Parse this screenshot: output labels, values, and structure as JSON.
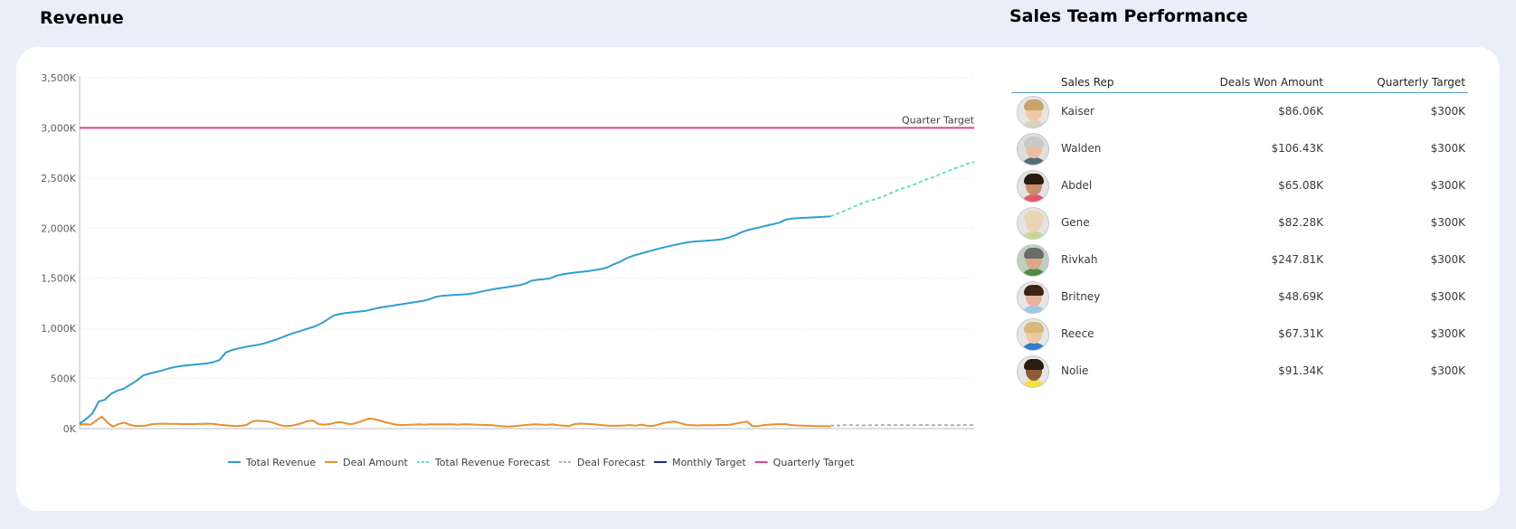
{
  "revenue_panel": {
    "title": "Revenue"
  },
  "sales_panel": {
    "title": "Sales Team Performance"
  },
  "chart_data": {
    "type": "line",
    "y_axis": {
      "min": 0,
      "max": 3500000,
      "ticks": [
        "0K",
        "500K",
        "1,000K",
        "1,500K",
        "2,000K",
        "2,500K",
        "3,000K",
        "3,500K"
      ],
      "gridlines": true
    },
    "x_axis": {
      "labels": []
    },
    "annotations": [
      {
        "text": "Quarter Target",
        "y": 3000000
      }
    ],
    "legend_position": "bottom",
    "series": [
      {
        "name": "Total Revenue",
        "color": "#2e9fd0",
        "style": "solid",
        "x_start": 0,
        "values": [
          50000,
          95000,
          150000,
          270000,
          290000,
          350000,
          380000,
          400000,
          440000,
          480000,
          530000,
          550000,
          565000,
          580000,
          600000,
          615000,
          625000,
          632000,
          638000,
          644000,
          650000,
          662000,
          685000,
          760000,
          785000,
          800000,
          815000,
          825000,
          835000,
          850000,
          870000,
          890000,
          915000,
          940000,
          960000,
          980000,
          1000000,
          1020000,
          1050000,
          1090000,
          1130000,
          1145000,
          1155000,
          1162000,
          1168000,
          1175000,
          1190000,
          1205000,
          1215000,
          1225000,
          1235000,
          1245000,
          1255000,
          1265000,
          1275000,
          1290000,
          1315000,
          1325000,
          1330000,
          1334000,
          1338000,
          1342000,
          1350000,
          1365000,
          1378000,
          1390000,
          1400000,
          1410000,
          1420000,
          1430000,
          1445000,
          1475000,
          1485000,
          1490000,
          1500000,
          1525000,
          1540000,
          1550000,
          1558000,
          1565000,
          1572000,
          1582000,
          1592000,
          1610000,
          1640000,
          1665000,
          1700000,
          1725000,
          1742000,
          1760000,
          1778000,
          1795000,
          1810000,
          1825000,
          1838000,
          1852000,
          1862000,
          1868000,
          1872000,
          1876000,
          1882000,
          1890000,
          1905000,
          1928000,
          1958000,
          1980000,
          1995000,
          2010000,
          2025000,
          2040000,
          2055000,
          2085000,
          2095000,
          2099000,
          2103000,
          2106000,
          2110000,
          2113000,
          2117000
        ]
      },
      {
        "name": "Deal Amount",
        "color": "#e8902e",
        "style": "solid",
        "x_start": 0,
        "values": [
          40000,
          45000,
          40000,
          80000,
          120000,
          60000,
          20000,
          45000,
          60000,
          40000,
          25000,
          28000,
          30000,
          45000,
          48000,
          50000,
          48000,
          47000,
          46000,
          45000,
          45000,
          46000,
          48000,
          50000,
          47000,
          40000,
          35000,
          30000,
          25000,
          28000,
          35000,
          70000,
          80000,
          75000,
          70000,
          55000,
          35000,
          25000,
          28000,
          40000,
          55000,
          75000,
          80000,
          45000,
          40000,
          45000,
          60000,
          65000,
          50000,
          45000,
          60000,
          80000,
          100000,
          95000,
          80000,
          65000,
          50000,
          40000,
          35000,
          38000,
          40000,
          42000,
          40000,
          42000,
          42000,
          42000,
          42000,
          42000,
          40000,
          42000,
          42000,
          40000,
          38000,
          36000,
          35000,
          30000,
          25000,
          20000,
          25000,
          30000,
          35000,
          40000,
          42000,
          40000,
          38000,
          42000,
          35000,
          30000,
          25000,
          45000,
          50000,
          48000,
          45000,
          40000,
          35000,
          30000,
          28000,
          30000,
          32000,
          35000,
          30000,
          40000,
          30000,
          25000,
          40000,
          55000,
          65000,
          70000,
          55000,
          40000,
          35000,
          32000,
          33000,
          35000,
          34000,
          36000,
          36000,
          40000,
          50000,
          60000,
          70000,
          25000,
          25000,
          35000,
          40000,
          42000,
          44000,
          45000,
          35000,
          32000,
          30000,
          28000,
          26000,
          25000,
          24000,
          23000
        ]
      },
      {
        "name": "Total Revenue Forecast",
        "color": "#5fe3c8",
        "style": "dashed",
        "x_start": 120,
        "values": [
          2117000,
          2140000,
          2165000,
          2192000,
          2220000,
          2245000,
          2268000,
          2285000,
          2305000,
          2330000,
          2360000,
          2385000,
          2405000,
          2425000,
          2450000,
          2478000,
          2500000,
          2522000,
          2548000,
          2575000,
          2598000,
          2620000,
          2645000,
          2660000
        ]
      },
      {
        "name": "Deal Forecast",
        "color": "#b0b0b0",
        "style": "dashed",
        "x_start": 120,
        "values": [
          30000,
          31000,
          33000,
          35000,
          34000,
          32000,
          35000,
          33000,
          34000,
          36000,
          33000,
          35000,
          34000,
          33000,
          35000,
          36000,
          34000,
          33000,
          35000,
          34000,
          33000,
          35000,
          34000,
          35000
        ]
      },
      {
        "name": "Monthly Target",
        "color": "#1f2a7a",
        "style": "solid",
        "x_start": 0,
        "values": []
      },
      {
        "name": "Quarterly Target",
        "color": "#e0429b",
        "style": "solid",
        "x_start": 0,
        "values": [
          3000000,
          3000000
        ]
      }
    ],
    "x_total": 143
  },
  "table": {
    "headers": {
      "rep": "Sales Rep",
      "won": "Deals Won Amount",
      "target": "Quarterly Target"
    },
    "rows": [
      {
        "name": "Kaiser",
        "won": "$86.06K",
        "target": "$300K",
        "avatar": {
          "hair": "#c9a46b",
          "skin": "#f1c9a7",
          "shirt": "#d9d2c3",
          "bg": "#e6e6e6"
        }
      },
      {
        "name": "Walden",
        "won": "$106.43K",
        "target": "$300K",
        "avatar": {
          "hair": "#c9c9c9",
          "skin": "#e8bfa0",
          "shirt": "#566b78",
          "bg": "#dedede"
        }
      },
      {
        "name": "Abdel",
        "won": "$65.08K",
        "target": "$300K",
        "avatar": {
          "hair": "#2b1a10",
          "skin": "#c98f6b",
          "shirt": "#e5586b",
          "bg": "#e2e2e2"
        }
      },
      {
        "name": "Gene",
        "won": "$82.28K",
        "target": "$300K",
        "avatar": {
          "hair": "#e7d7b2",
          "skin": "#f1d0b5",
          "shirt": "#c4d89a",
          "bg": "#e4e4e4"
        }
      },
      {
        "name": "Rivkah",
        "won": "$247.81K",
        "target": "$300K",
        "avatar": {
          "hair": "#6b6b6b",
          "skin": "#d9a888",
          "shirt": "#4d8a46",
          "bg": "#bfcfbd"
        }
      },
      {
        "name": "Britney",
        "won": "$48.69K",
        "target": "$300K",
        "avatar": {
          "hair": "#3b2418",
          "skin": "#e6b394",
          "shirt": "#9ec7e8",
          "bg": "#e6e6e6"
        }
      },
      {
        "name": "Reece",
        "won": "$67.31K",
        "target": "$300K",
        "avatar": {
          "hair": "#d8b77a",
          "skin": "#f0c7a4",
          "shirt": "#2f7bd0",
          "bg": "#e6e6e6"
        }
      },
      {
        "name": "Nolie",
        "won": "$91.34K",
        "target": "$300K",
        "avatar": {
          "hair": "#2c1c12",
          "skin": "#8f5a3a",
          "shirt": "#f0e23a",
          "bg": "#e6e6e6"
        }
      }
    ]
  }
}
